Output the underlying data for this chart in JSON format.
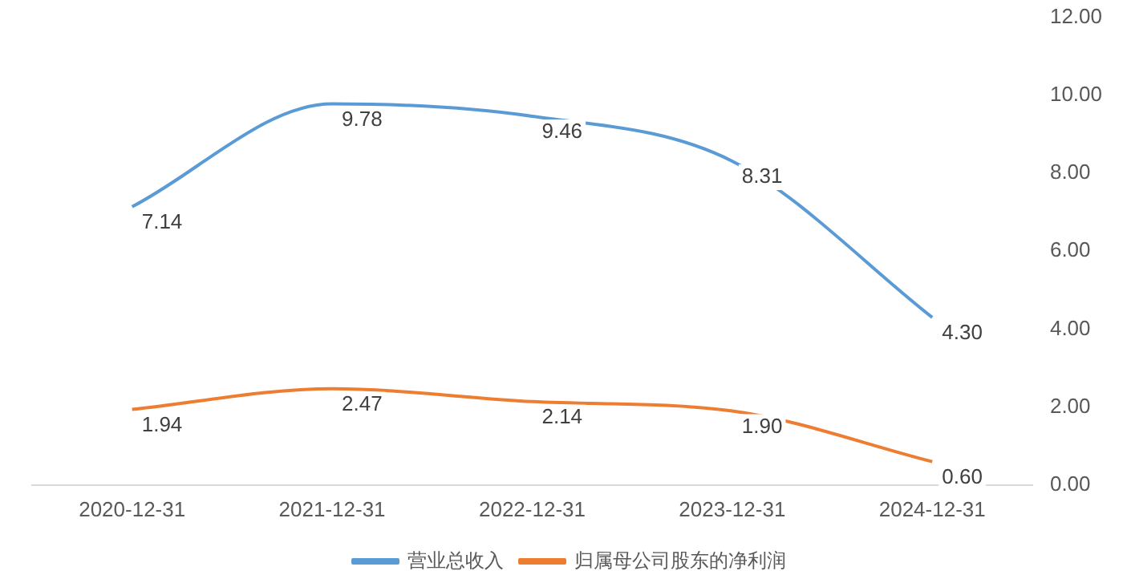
{
  "chart_data": {
    "type": "line",
    "categories": [
      "2020-12-31",
      "2021-12-31",
      "2022-12-31",
      "2023-12-31",
      "2024-12-31"
    ],
    "series": [
      {
        "name": "营业总收入",
        "color": "#5b9bd5",
        "values": [
          7.14,
          9.78,
          9.46,
          8.31,
          4.3
        ],
        "value_labels": [
          "7.14",
          "9.78",
          "9.46",
          "8.31",
          "4.30"
        ]
      },
      {
        "name": "归属母公司股东的净利润",
        "color": "#ed7d31",
        "values": [
          1.94,
          2.47,
          2.14,
          1.9,
          0.6
        ],
        "value_labels": [
          "1.94",
          "2.47",
          "2.14",
          "1.90",
          "0.60"
        ]
      }
    ],
    "ylim": [
      0,
      12
    ],
    "yticks": [
      {
        "value": 0,
        "label": "0.00"
      },
      {
        "value": 2,
        "label": "2.00"
      },
      {
        "value": 4,
        "label": "4.00"
      },
      {
        "value": 6,
        "label": "6.00"
      },
      {
        "value": 8,
        "label": "8.00"
      },
      {
        "value": 10,
        "label": "10.00"
      },
      {
        "value": 12,
        "label": "12.00"
      }
    ],
    "grid": false,
    "legend": "bottom",
    "marker": "none",
    "line_style": "solid"
  }
}
